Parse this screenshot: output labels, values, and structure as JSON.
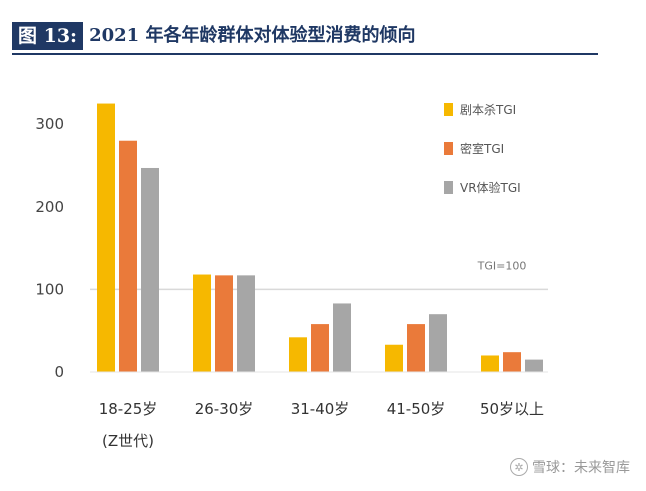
{
  "figure": {
    "tag": "图 13:",
    "title": "2021 年各年龄群体对体验型消费的倾向"
  },
  "watermark": {
    "icon": "snowball-logo-icon",
    "text": "雪球：未来智库"
  },
  "colors": {
    "header": "#1f3864",
    "jubensha": "#f6b800",
    "mishi": "#ea7a3a",
    "vr": "#a6a6a6",
    "refline": "#d9d9d9"
  },
  "chart_data": {
    "type": "bar",
    "categories": [
      "18-25岁",
      "26-30岁",
      "31-40岁",
      "41-50岁",
      "50岁以上"
    ],
    "category_sublabels": [
      "(Z世代)",
      "",
      "",
      "",
      ""
    ],
    "series": [
      {
        "name": "剧本杀TGI",
        "values": [
          325,
          118,
          42,
          33,
          20
        ]
      },
      {
        "name": "密室TGI",
        "values": [
          280,
          117,
          58,
          58,
          24
        ]
      },
      {
        "name": "VR体验TGI",
        "values": [
          247,
          117,
          83,
          70,
          15
        ]
      }
    ],
    "ylim": [
      0,
      330
    ],
    "yticks": [
      0,
      100,
      200,
      300
    ],
    "reference_line": {
      "value": 100,
      "label": "TGI=100"
    },
    "legend_position": "top-right",
    "grid": false,
    "xlabel": "",
    "ylabel": ""
  }
}
